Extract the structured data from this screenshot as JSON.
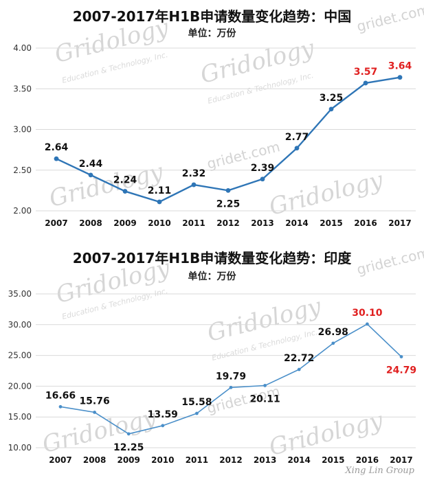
{
  "watermark": {
    "brand": "Gridology",
    "tagline": "Education & Technology, Inc.",
    "site": "gridet.com",
    "corner": "Xing Lin Group"
  },
  "chart_data": [
    {
      "type": "line",
      "title": "2007-2017年H1B申请数量变化趋势：中国",
      "subtitle": "单位：万份",
      "x": [
        "2007",
        "2008",
        "2009",
        "2010",
        "2011",
        "2012",
        "2013",
        "2014",
        "2015",
        "2016",
        "2017"
      ],
      "series": [
        {
          "values": [
            2.64,
            2.44,
            2.24,
            2.11,
            2.32,
            2.25,
            2.39,
            2.77,
            3.25,
            3.57,
            3.64
          ],
          "labels": [
            "2.64",
            "2.44",
            "2.24",
            "2.11",
            "2.32",
            "2.25",
            "2.39",
            "2.77",
            "3.25",
            "3.57",
            "3.64"
          ]
        }
      ],
      "yticks": [
        "2.00",
        "2.50",
        "3.00",
        "3.50",
        "4.00"
      ],
      "ylim": [
        2.0,
        4.0
      ],
      "grid": true,
      "line_color": "#2e75b6",
      "label_color": "#111111",
      "highlight_color": "#e02020",
      "highlight_indices": [
        9,
        10
      ]
    },
    {
      "type": "line",
      "title": "2007-2017年H1B申请数量变化趋势：印度",
      "subtitle": "单位：万份",
      "x": [
        "2007",
        "2008",
        "2009",
        "2010",
        "2011",
        "2012",
        "2013",
        "2014",
        "2015",
        "2016",
        "2017"
      ],
      "series": [
        {
          "values": [
            16.66,
            15.76,
            12.25,
            13.59,
            15.58,
            19.79,
            20.11,
            22.72,
            26.98,
            30.1,
            24.79
          ],
          "labels": [
            "16.66",
            "15.76",
            "12.25",
            "13.59",
            "15.58",
            "19.79",
            "20.11",
            "22.72",
            "26.98",
            "30.10",
            "24.79"
          ]
        }
      ],
      "yticks": [
        "10.00",
        "15.00",
        "20.00",
        "25.00",
        "30.00",
        "35.00"
      ],
      "ylim": [
        10.0,
        35.0
      ],
      "grid": true,
      "line_color": "#4a8fc9",
      "label_color": "#111111",
      "highlight_color": "#e02020",
      "highlight_indices": [
        9,
        10
      ]
    }
  ]
}
